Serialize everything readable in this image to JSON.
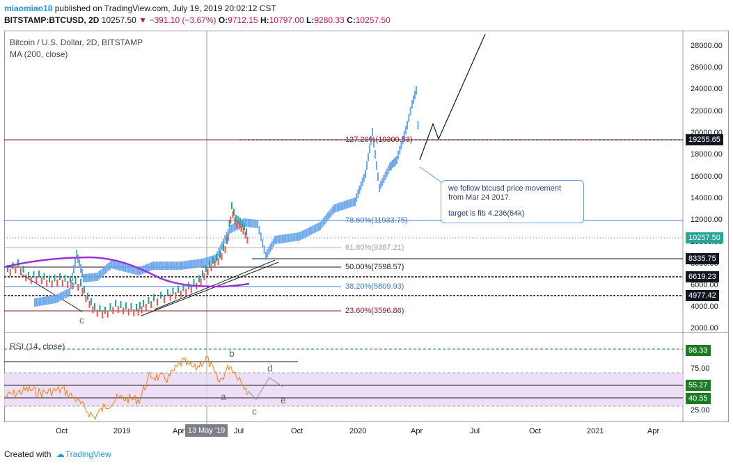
{
  "header": {
    "user": "miaomiao18",
    "published": "published on TradingView.com, July 19, 2019 20:02:12 CST",
    "symbol": "BITSTAMP:BTCUSD, 2D",
    "last": "10257.50",
    "change": "−391.10 (−3.67%)",
    "o_label": "O:",
    "o": "9712.15",
    "h_label": "H:",
    "h": "10797.00",
    "l_label": "L:",
    "l": "9280.33",
    "c_label": "C:",
    "c": "10257.50"
  },
  "main": {
    "title": "Bitcoin / U.S. Dollar, 2D, BITSTAMP",
    "indicator": "MA (200, close)"
  },
  "price_axis": [
    "28000.00",
    "26000.00",
    "24000.00",
    "22000.00",
    "20000.00",
    "18000.00",
    "16000.00",
    "14000.00",
    "12000.00",
    "10000.00",
    "8000.00",
    "6000.00",
    "4000.00",
    "2000.00"
  ],
  "price_labels": [
    {
      "text": "19255.65",
      "color": "#131722"
    },
    {
      "text": "10257.50",
      "color": "#26a69a"
    },
    {
      "text": "8335.75",
      "color": "#131722"
    },
    {
      "text": "6619.23",
      "color": "#131722"
    },
    {
      "text": "4977.42",
      "color": "#131722"
    }
  ],
  "fib": [
    {
      "text": "127.20%(19300.53)",
      "color": "#8b1a1a"
    },
    {
      "text": "78.60%(11933.75)",
      "color": "#3d78d8"
    },
    {
      "text": "61.80%(9387.21)",
      "color": "#a0a0a0"
    },
    {
      "text": "50.00%(7598.57)",
      "color": "#131722"
    },
    {
      "text": "38.20%(5809.93)",
      "color": "#3d78d8"
    },
    {
      "text": "23.60%(3596.86)",
      "color": "#8b1a1a"
    }
  ],
  "note": {
    "line1": "we follow btcusd price movement",
    "line2": " from Mar 24 2017.",
    "line3": "target is fib 4.236(64k)"
  },
  "rsi": {
    "title": "RSI (14, close)",
    "axis": [
      "75.00",
      "25.00"
    ],
    "labels": [
      {
        "text": "98.33",
        "color": "#1b7c24"
      },
      {
        "text": "55.27",
        "color": "#1b7c24"
      },
      {
        "text": "40.55",
        "color": "#1b7c24"
      }
    ],
    "waves": [
      "b",
      "d",
      "a",
      "c",
      "e"
    ]
  },
  "main_wave_label": "c",
  "time_axis": [
    "Oct",
    "2019",
    "Apr",
    "Jul",
    "Oct",
    "2020",
    "Apr",
    "Jul",
    "Oct",
    "2021",
    "Apr"
  ],
  "time_highlight": "13 May '19",
  "footer": {
    "created": "Created with",
    "brand": "TradingView"
  }
}
